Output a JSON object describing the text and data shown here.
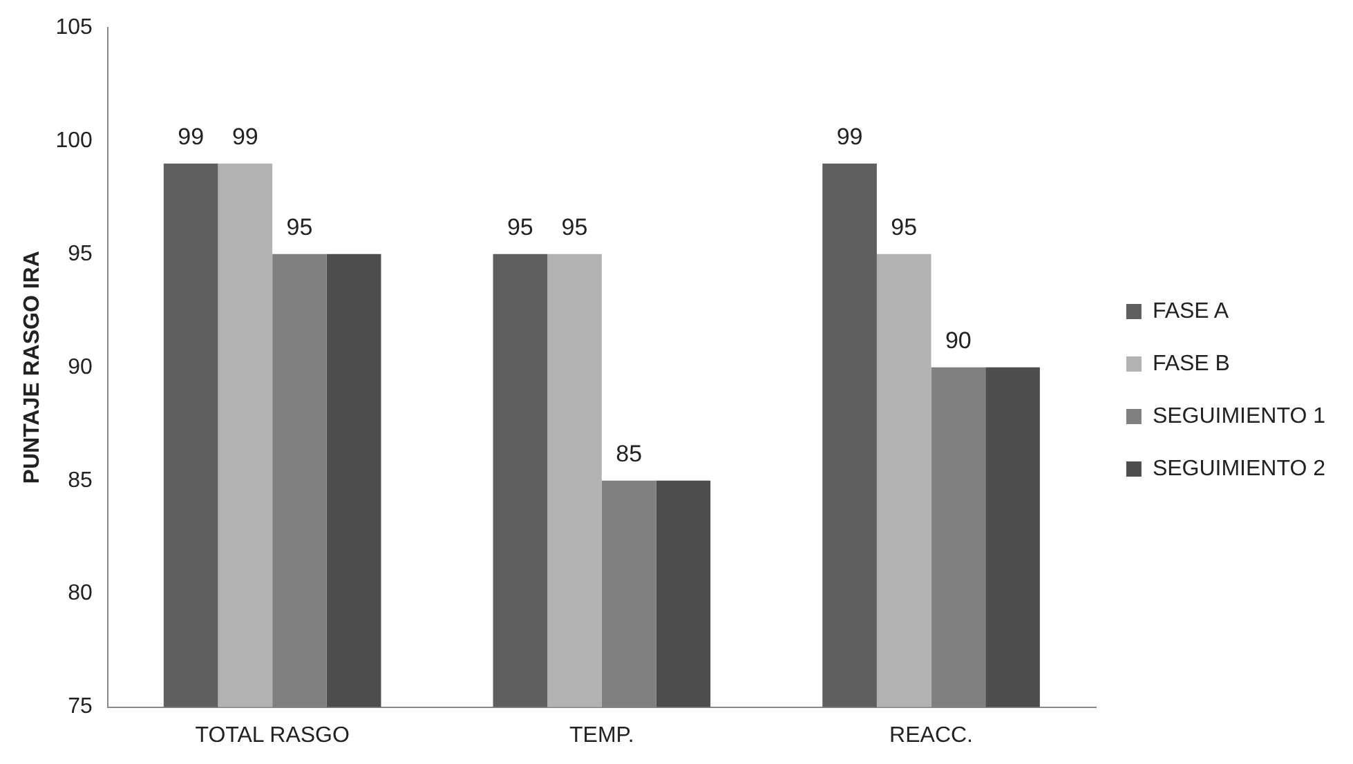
{
  "chart_data": {
    "type": "bar",
    "ylabel": "PUNTAJE RASGO IRA",
    "categories": [
      "TOTAL RASGO",
      "TEMP.",
      "REACC."
    ],
    "series": [
      {
        "name": "FASE A",
        "color": "#5f5f5f",
        "values": [
          99,
          95,
          99
        ],
        "value_labels": [
          "99",
          "95",
          "99"
        ]
      },
      {
        "name": "FASE B",
        "color": "#b2b2b2",
        "values": [
          99,
          95,
          95
        ],
        "value_labels": [
          "99",
          "95",
          "95"
        ]
      },
      {
        "name": "SEGUIMIENTO 1",
        "color": "#808080",
        "values": [
          95,
          85,
          90
        ],
        "value_labels": [
          "95",
          "85",
          "90"
        ]
      },
      {
        "name": "SEGUIMIENTO 2",
        "color": "#4d4d4d",
        "values": [
          95,
          85,
          90
        ],
        "value_labels": [
          null,
          null,
          null
        ]
      }
    ],
    "ylim": [
      75,
      105
    ],
    "yticks": [
      75,
      80,
      85,
      90,
      95,
      100,
      105
    ],
    "grid": false,
    "legend": "right"
  }
}
